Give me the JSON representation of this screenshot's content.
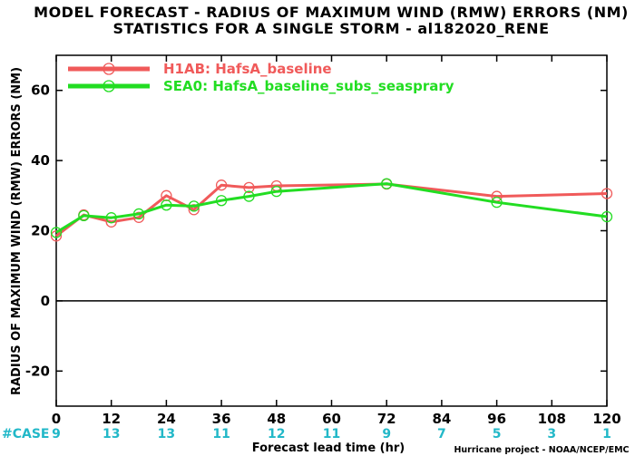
{
  "chart_data": {
    "type": "line",
    "title": "MODEL FORECAST - RADIUS OF MAXIMUM WIND (RMW) ERRORS (NM)",
    "subtitle": "STATISTICS FOR A SINGLE STORM - al182020_RENE",
    "xlabel": "Forecast lead time (hr)",
    "ylabel": "RADIUS OF MAXIMUM WIND (RMW) ERRORS (NM)",
    "xlim": [
      0,
      120
    ],
    "ylim": [
      -30,
      70
    ],
    "x_ticks": [
      0,
      12,
      24,
      36,
      48,
      60,
      72,
      84,
      96,
      108,
      120
    ],
    "y_ticks": [
      -20,
      0,
      20,
      40,
      60
    ],
    "grid": false,
    "legend_position": "top-left",
    "case_label": "#CASE",
    "case_counts": [
      "9",
      "13",
      "13",
      "11",
      "12",
      "11",
      "9",
      "7",
      "5",
      "3",
      "1"
    ],
    "credit": "Hurricane project - NOAA/NCEP/EMC",
    "series": [
      {
        "name": "H1AB: HafsA_baseline",
        "color": "#f05a5a",
        "x": [
          0,
          6,
          12,
          18,
          24,
          30,
          36,
          42,
          48,
          72,
          96,
          120
        ],
        "y": [
          18.5,
          24.5,
          22.5,
          23.8,
          30.0,
          26.0,
          33.0,
          32.3,
          32.8,
          33.3,
          29.8,
          30.6
        ]
      },
      {
        "name": "SEA0: HafsA_baseline_subs_seasprary",
        "color": "#22dd22",
        "x": [
          0,
          6,
          12,
          18,
          24,
          30,
          36,
          42,
          48,
          72,
          96,
          120
        ],
        "y": [
          19.5,
          24.3,
          23.7,
          24.8,
          27.3,
          27.0,
          28.6,
          29.8,
          31.2,
          33.4,
          28.1,
          24.0
        ]
      }
    ]
  }
}
